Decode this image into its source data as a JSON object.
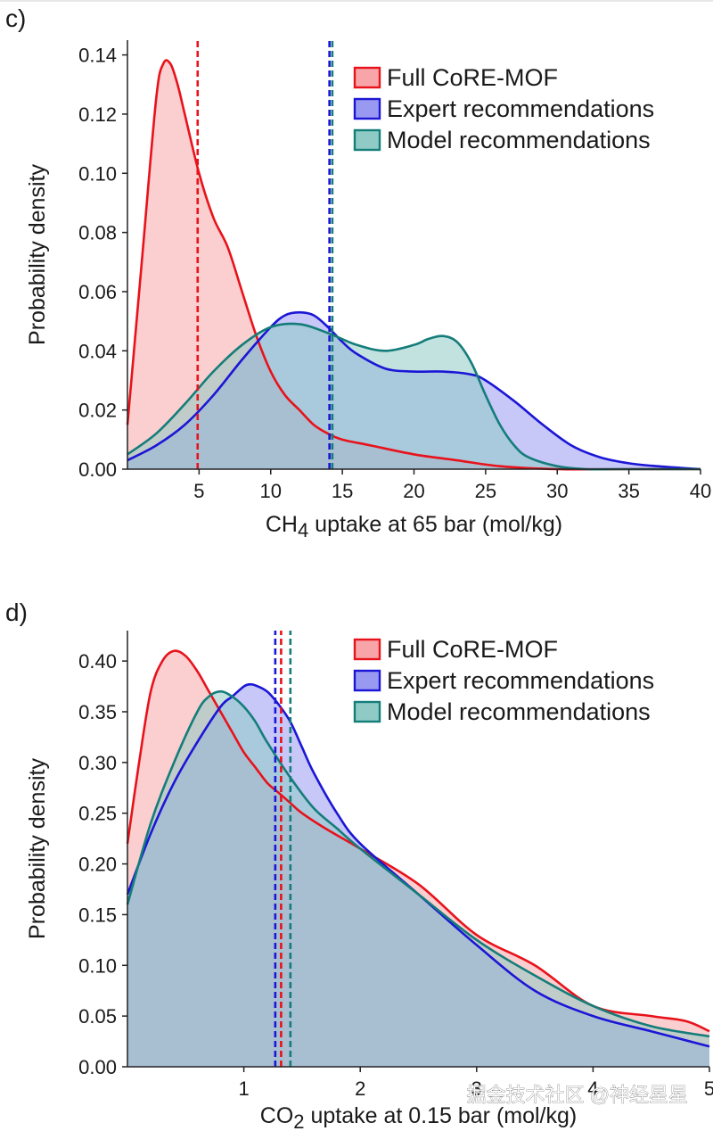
{
  "watermark": "掘金技术社区 @神经星星",
  "chart_data": [
    {
      "type": "area",
      "panel": "c)",
      "xlabel": {
        "pre": "CH",
        "sub": "4",
        "post": " uptake at 65 bar (mol/kg)"
      },
      "ylabel": "Probability density",
      "xlim": [
        0,
        40
      ],
      "ylim": [
        0,
        0.145
      ],
      "xticks": [
        5,
        10,
        15,
        20,
        25,
        30,
        35,
        40
      ],
      "yticks": [
        0.0,
        0.02,
        0.04,
        0.06,
        0.08,
        0.1,
        0.12,
        0.14
      ],
      "ytick_labels": [
        "0.00",
        "0.02",
        "0.04",
        "0.06",
        "0.08",
        "0.10",
        "0.12",
        "0.14"
      ],
      "legend_position": "top-right",
      "series": [
        {
          "name": "Full CoRE-MOF",
          "color": "#e8121b",
          "fill": "#f7a5a8",
          "x": [
            0,
            1,
            2,
            2.5,
            3,
            3.5,
            4,
            5,
            6,
            7,
            8,
            9,
            10,
            11,
            12,
            13,
            14,
            15,
            17,
            20,
            23,
            26,
            30,
            35,
            40
          ],
          "y": [
            0.015,
            0.07,
            0.125,
            0.137,
            0.137,
            0.13,
            0.12,
            0.1,
            0.085,
            0.075,
            0.06,
            0.045,
            0.033,
            0.025,
            0.02,
            0.015,
            0.012,
            0.01,
            0.008,
            0.005,
            0.003,
            0.001,
            0.0,
            0.0,
            0.0
          ]
        },
        {
          "name": "Expert recommendations",
          "color": "#1b16d6",
          "fill": "#9999f2",
          "x": [
            0,
            2,
            4,
            6,
            8,
            10,
            11,
            12,
            13,
            14,
            15,
            16,
            18,
            20,
            22,
            24,
            25,
            27,
            29,
            31,
            33,
            35,
            37,
            40
          ],
          "y": [
            0.003,
            0.008,
            0.015,
            0.025,
            0.037,
            0.048,
            0.052,
            0.053,
            0.052,
            0.048,
            0.043,
            0.039,
            0.034,
            0.033,
            0.033,
            0.032,
            0.03,
            0.023,
            0.015,
            0.008,
            0.004,
            0.002,
            0.001,
            0.0
          ]
        },
        {
          "name": "Model recommendations",
          "color": "#147d7a",
          "fill": "#8fcbc4",
          "x": [
            0,
            2,
            4,
            6,
            8,
            10,
            12,
            14,
            16,
            18,
            20,
            21,
            22,
            23,
            24,
            25,
            26,
            27,
            28,
            30,
            32,
            34,
            40
          ],
          "y": [
            0.005,
            0.012,
            0.022,
            0.033,
            0.042,
            0.048,
            0.049,
            0.046,
            0.042,
            0.04,
            0.042,
            0.044,
            0.045,
            0.043,
            0.036,
            0.025,
            0.015,
            0.008,
            0.004,
            0.001,
            0.0,
            0.0,
            0.0
          ]
        }
      ],
      "vlines": [
        {
          "series": "Full CoRE-MOF",
          "x": 4.9,
          "color": "#e8121b"
        },
        {
          "series": "Expert recommendations",
          "x": 14.1,
          "color": "#1b16d6"
        },
        {
          "series": "Model recommendations",
          "x": 14.3,
          "color": "#147d7a"
        }
      ]
    },
    {
      "type": "area",
      "panel": "d)",
      "xlabel": {
        "pre": "CO",
        "sub": "2",
        "post": " uptake at 0.15 bar (mol/kg)"
      },
      "ylabel": "Probability density",
      "xlim": [
        0,
        5
      ],
      "ylim": [
        0,
        0.43
      ],
      "xticks": [
        1,
        2,
        3,
        4,
        5
      ],
      "yticks": [
        0.0,
        0.05,
        0.1,
        0.15,
        0.2,
        0.25,
        0.3,
        0.35,
        0.4
      ],
      "ytick_labels": [
        "0.00",
        "0.05",
        "0.10",
        "0.15",
        "0.20",
        "0.25",
        "0.30",
        "0.35",
        "0.40"
      ],
      "legend_position": "top-right",
      "series": [
        {
          "name": "Full CoRE-MOF",
          "color": "#e8121b",
          "fill": "#f7a5a8",
          "x": [
            0,
            0.1,
            0.2,
            0.3,
            0.4,
            0.5,
            0.6,
            0.7,
            0.8,
            0.9,
            1.0,
            1.1,
            1.2,
            1.3,
            1.4,
            1.5,
            1.7,
            2.0,
            2.5,
            3.0,
            3.5,
            4.0,
            4.5,
            4.8,
            5.0
          ],
          "y": [
            0.22,
            0.3,
            0.37,
            0.4,
            0.41,
            0.405,
            0.39,
            0.37,
            0.35,
            0.33,
            0.31,
            0.295,
            0.28,
            0.27,
            0.26,
            0.25,
            0.235,
            0.215,
            0.18,
            0.13,
            0.1,
            0.06,
            0.05,
            0.045,
            0.035
          ]
        },
        {
          "name": "Expert recommendations",
          "color": "#1b16d6",
          "fill": "#9999f2",
          "x": [
            0,
            0.2,
            0.4,
            0.6,
            0.8,
            0.9,
            1.0,
            1.05,
            1.1,
            1.2,
            1.3,
            1.4,
            1.5,
            1.6,
            1.8,
            2.0,
            2.5,
            3.0,
            3.5,
            4.0,
            4.5,
            5.0
          ],
          "y": [
            0.17,
            0.23,
            0.28,
            0.32,
            0.355,
            0.365,
            0.375,
            0.377,
            0.376,
            0.37,
            0.357,
            0.34,
            0.315,
            0.29,
            0.25,
            0.22,
            0.17,
            0.12,
            0.075,
            0.05,
            0.035,
            0.02
          ]
        },
        {
          "name": "Model recommendations",
          "color": "#147d7a",
          "fill": "#8fcbc4",
          "x": [
            0,
            0.2,
            0.4,
            0.6,
            0.7,
            0.8,
            0.9,
            1.0,
            1.1,
            1.2,
            1.4,
            1.6,
            1.8,
            2.0,
            2.5,
            3.0,
            3.5,
            4.0,
            4.5,
            5.0
          ],
          "y": [
            0.16,
            0.24,
            0.3,
            0.35,
            0.365,
            0.37,
            0.365,
            0.355,
            0.34,
            0.32,
            0.285,
            0.255,
            0.235,
            0.215,
            0.17,
            0.125,
            0.09,
            0.06,
            0.04,
            0.03
          ]
        }
      ],
      "vlines": [
        {
          "series": "Expert recommendations",
          "x": 1.27,
          "color": "#1b16d6"
        },
        {
          "series": "Full CoRE-MOF",
          "x": 1.32,
          "color": "#e8121b"
        },
        {
          "series": "Model recommendations",
          "x": 1.4,
          "color": "#147d7a"
        }
      ]
    }
  ]
}
